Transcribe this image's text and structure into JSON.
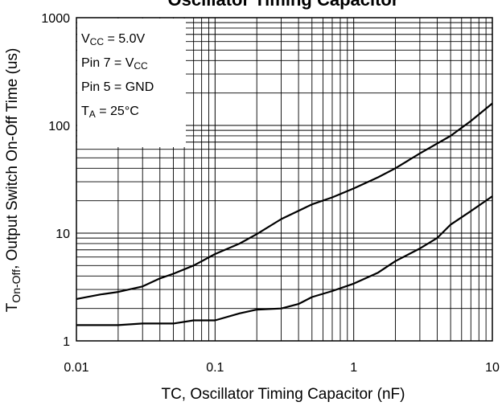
{
  "chart_data": {
    "type": "line",
    "title": "Oscillator Timing Capacitor",
    "xlabel": "TC, Oscillator Timing Capacitor (nF)",
    "ylabel_main": "T",
    "ylabel_sub": "On-Off",
    "ylabel_rest": ", Output Switch On-Off Time (us)",
    "xscale": "log",
    "yscale": "log",
    "xlim": [
      0.01,
      10
    ],
    "ylim": [
      1,
      1000
    ],
    "grid": true,
    "x_ticks": [
      {
        "value": 0.01,
        "label": "0.01"
      },
      {
        "value": 0.1,
        "label": "0.1"
      },
      {
        "value": 1,
        "label": "1"
      },
      {
        "value": 10,
        "label": "10"
      }
    ],
    "y_ticks": [
      {
        "value": 1,
        "label": "1"
      },
      {
        "value": 10,
        "label": "10"
      },
      {
        "value": 100,
        "label": "100"
      },
      {
        "value": 1000,
        "label": "1000"
      }
    ],
    "annotations": [
      {
        "main": "V",
        "sub": "CC",
        "rest": " = 5.0V"
      },
      {
        "main": "Pin 7 = V",
        "sub": "CC",
        "rest": ""
      },
      {
        "main": "Pin 5 = GND",
        "sub": "",
        "rest": ""
      },
      {
        "main": "T",
        "sub": "A",
        "rest": " = 25°C"
      }
    ],
    "series": [
      {
        "x": [
          0.01,
          0.015,
          0.02,
          0.03,
          0.04,
          0.05,
          0.07,
          0.1,
          0.15,
          0.2,
          0.3,
          0.5,
          0.7,
          1,
          1.5,
          2,
          3,
          5,
          7,
          10
        ],
        "y": [
          2.45,
          2.7,
          2.85,
          3.2,
          3.8,
          4.2,
          5.0,
          6.4,
          8.0,
          9.8,
          13.5,
          18.5,
          21.5,
          26,
          33,
          40,
          55,
          80,
          110,
          160
        ]
      },
      {
        "x": [
          0.01,
          0.02,
          0.03,
          0.05,
          0.07,
          0.1,
          0.15,
          0.2,
          0.3,
          0.4,
          0.5,
          0.7,
          1,
          1.5,
          2,
          3,
          4,
          5,
          7,
          10
        ],
        "y": [
          1.4,
          1.4,
          1.45,
          1.45,
          1.55,
          1.55,
          1.8,
          1.95,
          2.0,
          2.2,
          2.55,
          2.9,
          3.4,
          4.3,
          5.5,
          7.2,
          9.0,
          12.0,
          16.0,
          22.0
        ]
      }
    ]
  }
}
